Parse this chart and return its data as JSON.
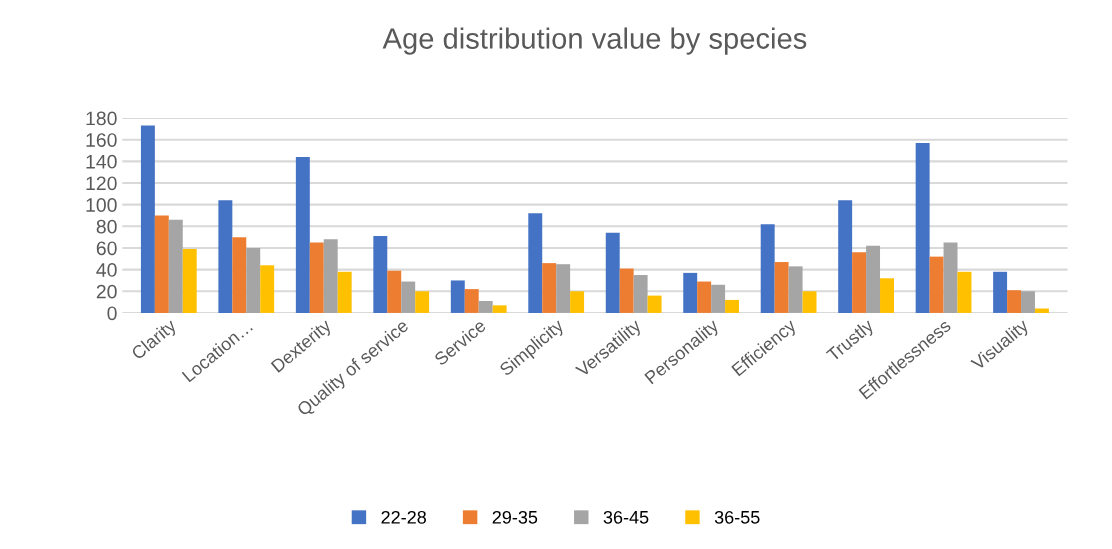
{
  "chart_data": {
    "type": "bar",
    "title": "Age distribution value by species",
    "categories": [
      "Clarity",
      "Location…",
      "Dexterity",
      "Quality of service",
      "Service",
      "Simplicity",
      "Versatility",
      "Personality",
      "Efficiency",
      "Trustly",
      "Effortlessness",
      "Visuality"
    ],
    "series": [
      {
        "name": "22-28",
        "color": "#4472c4",
        "values": [
          173,
          104,
          144,
          71,
          30,
          92,
          74,
          37,
          82,
          104,
          157,
          38
        ]
      },
      {
        "name": "29-35",
        "color": "#ed7d31",
        "values": [
          90,
          70,
          65,
          39,
          22,
          46,
          41,
          29,
          47,
          56,
          52,
          21
        ]
      },
      {
        "name": "36-45",
        "color": "#a5a5a5",
        "values": [
          86,
          60,
          68,
          29,
          11,
          45,
          35,
          26,
          43,
          62,
          65,
          20
        ]
      },
      {
        "name": "36-55",
        "color": "#ffc000",
        "values": [
          59,
          44,
          38,
          20,
          7,
          20,
          16,
          12,
          20,
          32,
          38,
          4
        ]
      }
    ],
    "ylim": [
      0,
      180
    ],
    "yticks": [
      0,
      20,
      40,
      60,
      80,
      100,
      120,
      140,
      160,
      180
    ],
    "grid": "y",
    "legend": "bottom"
  }
}
